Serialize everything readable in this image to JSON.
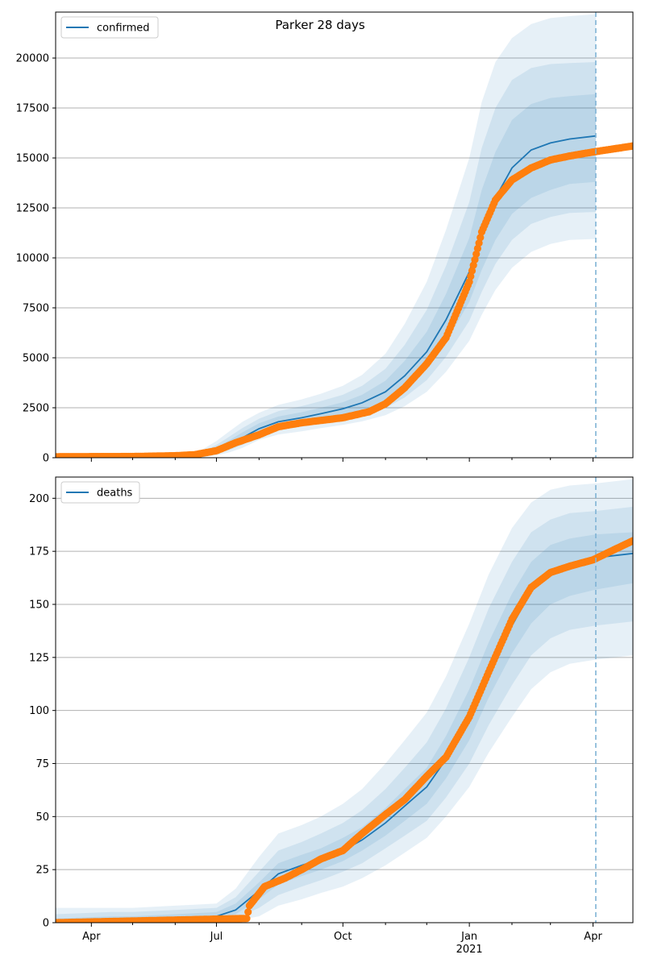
{
  "figure": {
    "title": "Parker 28 days"
  },
  "colors": {
    "model_line": "#1f77b4",
    "observed_points": "#ff7f0e",
    "band": "#1f77b4",
    "grid": "#b0b0b0",
    "forecast_marker": "#7fb3d5"
  },
  "chart_data": [
    {
      "type": "line",
      "legend": [
        "confirmed"
      ],
      "legend_position": "top-left",
      "grid": "horizontal",
      "xlim": [
        "2020-03-06",
        "2021-04-30"
      ],
      "ylim": [
        0,
        22300
      ],
      "yticks": [
        0,
        2500,
        5000,
        7500,
        10000,
        12500,
        15000,
        17500,
        20000
      ],
      "xticks": [
        {
          "date": "2020-04-01",
          "label": "Apr",
          "sublabel": ""
        },
        {
          "date": "2020-07-01",
          "label": "Jul",
          "sublabel": ""
        },
        {
          "date": "2020-10-01",
          "label": "Oct",
          "sublabel": ""
        },
        {
          "date": "2021-01-01",
          "label": "Jan",
          "sublabel": ""
        },
        {
          "date": "2021-04-01",
          "label": "Apr",
          "sublabel": ""
        }
      ],
      "forecast_date": "2021-04-03",
      "model": {
        "name": "confirmed",
        "x": [
          "2020-06-20",
          "2020-07-01",
          "2020-07-10",
          "2020-07-20",
          "2020-08-01",
          "2020-08-15",
          "2020-09-01",
          "2020-09-15",
          "2020-10-01",
          "2020-10-15",
          "2020-11-01",
          "2020-11-15",
          "2020-12-01",
          "2020-12-15",
          "2021-01-01",
          "2021-01-10",
          "2021-01-20",
          "2021-02-01",
          "2021-02-15",
          "2021-03-01",
          "2021-03-15",
          "2021-04-03"
        ],
        "y": [
          150,
          380,
          650,
          1000,
          1450,
          1800,
          2000,
          2200,
          2450,
          2750,
          3300,
          4100,
          5300,
          6900,
          9300,
          11300,
          13000,
          14500,
          15400,
          15750,
          15950,
          16100
        ],
        "bands": [
          {
            "lower": [
              80,
              260,
              480,
              780,
              1230,
              1560,
              1750,
              1950,
              2150,
              2380,
              2800,
              3450,
              4450,
              5800,
              7800,
              9400,
              10900,
              12200,
              13000,
              13400,
              13700,
              13800
            ],
            "upper": [
              230,
              510,
              860,
              1270,
              1720,
              2060,
              2280,
              2500,
              2780,
              3150,
              3850,
              4850,
              6300,
              8200,
              11000,
              13400,
              15300,
              16900,
              17700,
              18000,
              18100,
              18200
            ]
          },
          {
            "lower": [
              40,
              190,
              370,
              640,
              1080,
              1380,
              1560,
              1740,
              1920,
              2120,
              2480,
              3020,
              3880,
              5050,
              6850,
              8300,
              9700,
              10900,
              11700,
              12050,
              12250,
              12300
            ],
            "upper": [
              290,
              640,
              1040,
              1490,
              1950,
              2330,
              2580,
              2830,
              3150,
              3600,
              4450,
              5650,
              7400,
              9600,
              12800,
              15500,
              17500,
              18900,
              19500,
              19700,
              19750,
              19800
            ]
          },
          {
            "lower": [
              10,
              120,
              260,
              490,
              890,
              1160,
              1320,
              1480,
              1640,
              1820,
              2130,
              2580,
              3300,
              4300,
              5850,
              7150,
              8400,
              9500,
              10300,
              10700,
              10900,
              10950
            ],
            "upper": [
              380,
              840,
              1300,
              1800,
              2250,
              2640,
              2920,
              3200,
              3600,
              4150,
              5200,
              6700,
              8800,
              11400,
              15000,
              17800,
              19800,
              21000,
              21700,
              22000,
              22100,
              22200
            ]
          }
        ]
      },
      "observed": {
        "anchors_x": [
          "2020-03-06",
          "2020-05-01",
          "2020-06-01",
          "2020-06-15",
          "2020-07-01",
          "2020-07-15",
          "2020-08-01",
          "2020-08-15",
          "2020-09-01",
          "2020-10-01",
          "2020-10-20",
          "2020-11-01",
          "2020-11-15",
          "2020-12-01",
          "2020-12-15",
          "2021-01-01",
          "2021-01-10",
          "2021-01-20",
          "2021-02-01",
          "2021-02-15",
          "2021-03-01",
          "2021-03-15",
          "2021-04-01",
          "2021-04-30"
        ],
        "anchors_y": [
          50,
          60,
          100,
          150,
          350,
          750,
          1150,
          1550,
          1750,
          2000,
          2300,
          2700,
          3500,
          4700,
          6000,
          8800,
          11300,
          12900,
          13900,
          14500,
          14900,
          15100,
          15300,
          15600
        ]
      }
    },
    {
      "type": "line",
      "legend": [
        "deaths"
      ],
      "legend_position": "top-left",
      "grid": "horizontal",
      "xlim": [
        "2020-03-06",
        "2021-04-30"
      ],
      "ylim": [
        0,
        210
      ],
      "yticks": [
        0,
        25,
        50,
        75,
        100,
        125,
        150,
        175,
        200
      ],
      "xticks": [
        {
          "date": "2020-04-01",
          "label": "Apr",
          "sublabel": ""
        },
        {
          "date": "2020-07-01",
          "label": "Jul",
          "sublabel": ""
        },
        {
          "date": "2020-10-01",
          "label": "Oct",
          "sublabel": ""
        },
        {
          "date": "2021-01-01",
          "label": "Jan",
          "sublabel": "2021"
        },
        {
          "date": "2021-04-01",
          "label": "Apr",
          "sublabel": ""
        }
      ],
      "forecast_date": "2021-04-03",
      "model": {
        "name": "deaths",
        "x": [
          "2020-03-06",
          "2020-04-15",
          "2020-05-01",
          "2020-06-01",
          "2020-07-01",
          "2020-07-15",
          "2020-08-01",
          "2020-08-15",
          "2020-09-01",
          "2020-09-15",
          "2020-10-01",
          "2020-10-15",
          "2020-11-01",
          "2020-11-15",
          "2020-12-01",
          "2020-12-15",
          "2021-01-01",
          "2021-01-15",
          "2021-02-01",
          "2021-02-15",
          "2021-03-01",
          "2021-03-15",
          "2021-04-03",
          "2021-04-30"
        ],
        "y": [
          0,
          1,
          2,
          2,
          3,
          6,
          15,
          23,
          27,
          30,
          34,
          39,
          47,
          55,
          64,
          77,
          97,
          118,
          140,
          156,
          165,
          169,
          172,
          174
        ],
        "bands": [
          {
            "lower": [
              0,
              0,
              0,
              1,
              2,
              4,
              11,
              18,
              22,
              25,
              29,
              34,
              41,
              48,
              56,
              68,
              86,
              106,
              127,
              141,
              150,
              154,
              157,
              160
            ],
            "upper": [
              2,
              3,
              3,
              4,
              5,
              9,
              19,
              28,
              32,
              35,
              40,
              45,
              54,
              63,
              73,
              88,
              110,
              132,
              155,
              170,
              178,
              181,
              183,
              184
            ]
          },
          {
            "lower": [
              0,
              0,
              0,
              0,
              1,
              2,
              7,
              13,
              17,
              20,
              24,
              28,
              35,
              41,
              48,
              59,
              75,
              93,
              112,
              126,
              134,
              138,
              140,
              142
            ],
            "upper": [
              4,
              5,
              5,
              6,
              7,
              12,
              24,
              34,
              38,
              42,
              47,
              53,
              63,
              73,
              85,
              101,
              125,
              148,
              170,
              184,
              190,
              193,
              194,
              196
            ]
          },
          {
            "lower": [
              0,
              0,
              0,
              0,
              0,
              1,
              3,
              8,
              11,
              14,
              17,
              21,
              27,
              33,
              40,
              50,
              64,
              80,
              97,
              110,
              118,
              122,
              124,
              126
            ],
            "upper": [
              7,
              7,
              7,
              8,
              9,
              16,
              31,
              42,
              46,
              50,
              56,
              63,
              75,
              86,
              99,
              116,
              141,
              164,
              186,
              198,
              204,
              206,
              207,
              209
            ]
          }
        ]
      },
      "observed": {
        "anchors_x": [
          "2020-03-06",
          "2020-05-15",
          "2020-07-23",
          "2020-07-25",
          "2020-08-05",
          "2020-08-20",
          "2020-09-01",
          "2020-09-15",
          "2020-10-01",
          "2020-10-15",
          "2020-11-01",
          "2020-11-15",
          "2020-12-01",
          "2020-12-15",
          "2021-01-01",
          "2021-01-15",
          "2021-02-01",
          "2021-02-15",
          "2021-03-01",
          "2021-03-15",
          "2021-04-01",
          "2021-04-30"
        ],
        "anchors_y": [
          0,
          1,
          2,
          8,
          17,
          21,
          25,
          30,
          34,
          42,
          51,
          58,
          69,
          78,
          97,
          118,
          143,
          158,
          165,
          168,
          171,
          180
        ]
      }
    }
  ]
}
